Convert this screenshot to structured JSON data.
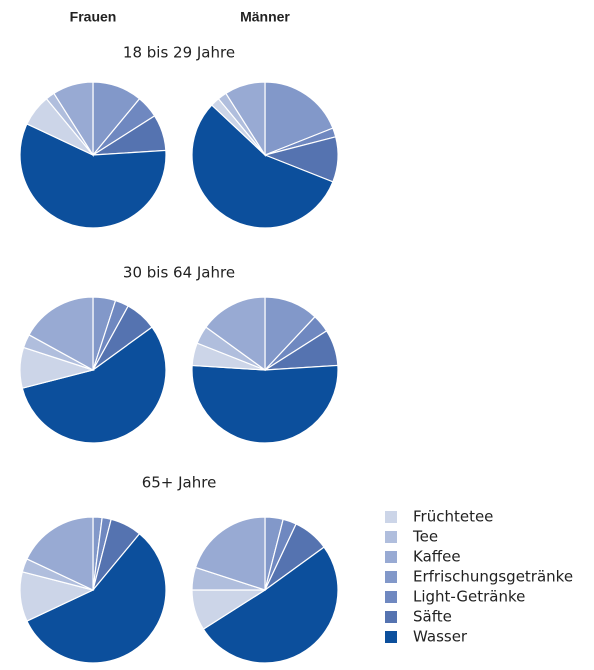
{
  "chart_data": {
    "type": "pie",
    "columns": [
      "Frauen",
      "Männer"
    ],
    "labels": [
      "Früchtetee",
      "Tee",
      "Kaffee",
      "Erfrischungsgetränke",
      "Light-Getränke",
      "Säfte",
      "Wasser"
    ],
    "colors": [
      "#ccd5e8",
      "#b0bedd",
      "#98aad3",
      "#8298c9",
      "#6f88c0",
      "#5573b0",
      "#0c4f9c"
    ],
    "rows": [
      {
        "title": "18 bis 29 Jahre",
        "values": [
          [
            7,
            2,
            9,
            11,
            5,
            8,
            58
          ],
          [
            2,
            2,
            9,
            19,
            2,
            10,
            56
          ]
        ]
      },
      {
        "title": "30 bis 64 Jahre",
        "values": [
          [
            9,
            3,
            17,
            5,
            3,
            7,
            56
          ],
          [
            5,
            4,
            15,
            12,
            4,
            8,
            52
          ]
        ]
      },
      {
        "title": "65+ Jahre",
        "values": [
          [
            11,
            3,
            18,
            2,
            2,
            7,
            57
          ],
          [
            9,
            5,
            20,
            4,
            3,
            8,
            51
          ]
        ]
      }
    ]
  }
}
